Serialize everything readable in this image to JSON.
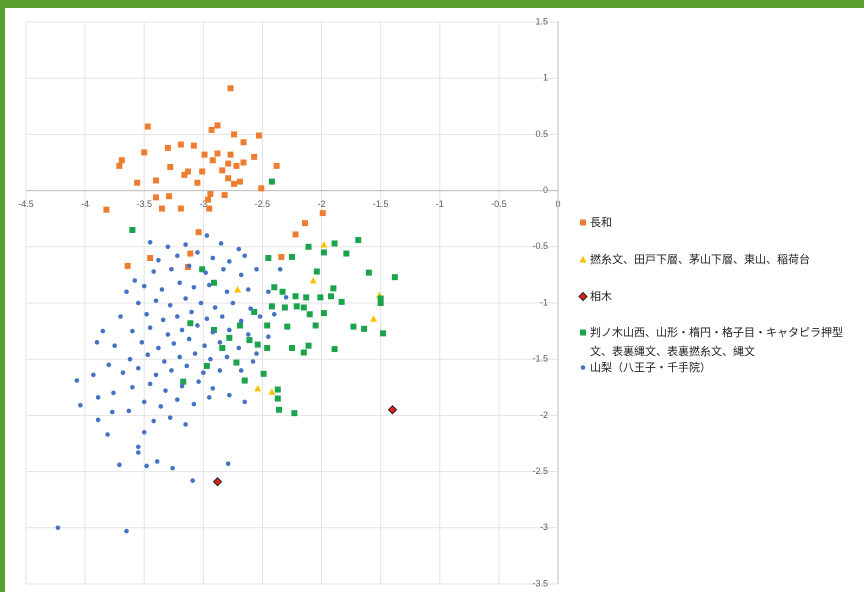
{
  "chart_data": {
    "type": "scatter",
    "xlim": [
      -4.5,
      0
    ],
    "ylim": [
      -3.5,
      1.5
    ],
    "xticks": [
      -4.5,
      -4,
      -3.5,
      -3,
      -2.5,
      -2,
      -1.5,
      -1,
      -0.5,
      0
    ],
    "yticks": [
      1.5,
      1,
      0.5,
      0,
      -0.5,
      -1,
      -1.5,
      -2,
      -2.5,
      -3,
      -3.5
    ],
    "grid": true,
    "legend": "right",
    "series": [
      {
        "name": "長和",
        "color": "#ED7D31",
        "marker": "square",
        "x": [
          -2.77,
          -3.47,
          -2.88,
          -2.93,
          -2.53,
          -2.74,
          -2.66,
          -3.3,
          -3.19,
          -3.08,
          -3.5,
          -2.99,
          -2.88,
          -2.77,
          -2.57,
          -3.69,
          -3.71,
          -3.28,
          -2.92,
          -2.79,
          -2.66,
          -2.72,
          -2.38,
          -3.13,
          -3.16,
          -3.01,
          -2.84,
          -3.4,
          -3.56,
          -3.05,
          -2.79,
          -2.69,
          -2.74,
          -2.51,
          -3.4,
          -3.29,
          -2.94,
          -2.82,
          -2.96,
          -3.82,
          -3.35,
          -3.19,
          -2.95,
          -1.99,
          -2.14,
          -2.22,
          -3.04,
          -3.11,
          -2.34,
          -3.45,
          -3.64,
          -3.13
        ],
        "values": [
          0.91,
          0.57,
          0.58,
          0.54,
          0.49,
          0.5,
          0.43,
          0.38,
          0.41,
          0.4,
          0.34,
          0.32,
          0.33,
          0.32,
          0.3,
          0.27,
          0.22,
          0.21,
          0.27,
          0.24,
          0.25,
          0.22,
          0.22,
          0.17,
          0.14,
          0.17,
          0.18,
          0.09,
          0.07,
          0.07,
          0.11,
          0.08,
          0.06,
          0.02,
          -0.06,
          -0.05,
          -0.03,
          -0.04,
          -0.08,
          -0.17,
          -0.16,
          -0.16,
          -0.16,
          -0.2,
          -0.29,
          -0.39,
          -0.37,
          -0.56,
          -0.59,
          -0.6,
          -0.67,
          -0.68
        ]
      },
      {
        "name": "撚糸文、田戸下層、茅山下層、東山、稲荷台",
        "color": "#FFC000",
        "marker": "triangle",
        "x": [
          -1.98,
          -2.07,
          -2.71,
          -1.51,
          -1.56,
          -2.54,
          -2.42
        ],
        "values": [
          -0.48,
          -0.8,
          -0.88,
          -0.93,
          -1.14,
          -1.76,
          -1.79
        ]
      },
      {
        "name": "相木",
        "color": "#E0201B",
        "marker": "diamond",
        "x": [
          -1.4,
          -2.88
        ],
        "values": [
          -1.95,
          -2.59
        ]
      },
      {
        "name": "判ノ木山西、山形・楕円・格子目・キャタピラ押型文、表裏縄文、表裏撚糸文、縄文",
        "color": "#1BA44B",
        "marker": "square",
        "x": [
          -3.6,
          -2.42,
          -1.69,
          -1.89,
          -2.11,
          -1.79,
          -1.98,
          -2.25,
          -2.45,
          -1.6,
          -2.04,
          -1.38,
          -2.4,
          -1.9,
          -2.33,
          -2.22,
          -2.13,
          -2.01,
          -1.92,
          -1.5,
          -1.5,
          -1.83,
          -2.42,
          -2.31,
          -2.21,
          -2.15,
          -2.1,
          -1.98,
          -2.57,
          -2.05,
          -1.73,
          -1.64,
          -1.48,
          -2.29,
          -2.46,
          -2.69,
          -2.78,
          -2.61,
          -2.54,
          -2.84,
          -2.25,
          -2.11,
          -2.15,
          -1.89,
          -2.46,
          -2.72,
          -2.97,
          -2.49,
          -2.65,
          -2.37,
          -2.37,
          -2.36,
          -2.23,
          -3.01,
          -2.91,
          -3.11,
          -3.17,
          -2.91
        ],
        "values": [
          -0.35,
          0.08,
          -0.44,
          -0.47,
          -0.5,
          -0.56,
          -0.55,
          -0.59,
          -0.6,
          -0.73,
          -0.72,
          -0.77,
          -0.86,
          -0.87,
          -0.9,
          -0.94,
          -0.95,
          -0.95,
          -0.94,
          -0.96,
          -1.0,
          -0.99,
          -1.03,
          -1.04,
          -1.03,
          -1.04,
          -1.1,
          -1.09,
          -1.08,
          -1.2,
          -1.21,
          -1.23,
          -1.27,
          -1.21,
          -1.2,
          -1.2,
          -1.31,
          -1.33,
          -1.37,
          -1.4,
          -1.4,
          -1.38,
          -1.44,
          -1.41,
          -1.4,
          -1.53,
          -1.56,
          -1.63,
          -1.69,
          -1.77,
          -1.85,
          -1.95,
          -1.98,
          -0.7,
          -0.82,
          -1.18,
          -1.7,
          -1.24
        ]
      },
      {
        "name": "山梨（八王子・千手院）",
        "color": "#4472C4",
        "marker": "circle",
        "x": [
          -4.23,
          -3.65,
          -4.07,
          -4.04,
          -3.93,
          -3.89,
          -3.89,
          -3.71,
          -2.79,
          -3.09,
          -3.39,
          -3.48,
          -3.26,
          -3.55,
          -3.55,
          -3.81,
          -3.77,
          -3.63,
          -3.76,
          -3.45,
          -3.3,
          -3.15,
          -2.97,
          -2.85,
          -2.7,
          -3.38,
          -3.22,
          -3.05,
          -2.92,
          -2.78,
          -2.65,
          -3.58,
          -3.42,
          -3.27,
          -3.12,
          -2.98,
          -2.83,
          -2.68,
          -2.55,
          -3.65,
          -3.5,
          -3.35,
          -3.2,
          -3.08,
          -2.95,
          -2.8,
          -2.62,
          -3.55,
          -3.4,
          -3.28,
          -3.15,
          -3.02,
          -2.9,
          -2.75,
          -2.6,
          -3.7,
          -3.48,
          -3.34,
          -3.22,
          -3.1,
          -2.97,
          -2.84,
          -2.68,
          -2.52,
          -3.6,
          -3.45,
          -3.3,
          -3.18,
          -3.05,
          -2.92,
          -2.78,
          -2.62,
          -3.75,
          -3.52,
          -3.38,
          -3.25,
          -3.12,
          -2.99,
          -2.86,
          -2.7,
          -3.62,
          -3.47,
          -3.33,
          -3.2,
          -3.07,
          -2.94,
          -2.8,
          -2.58,
          -3.68,
          -3.55,
          -3.4,
          -3.27,
          -3.14,
          -3.0,
          -2.86,
          -3.6,
          -3.45,
          -3.32,
          -3.18,
          -3.04,
          -2.92,
          -2.65,
          -3.5,
          -3.36,
          -3.22,
          -3.08,
          -2.95,
          -3.42,
          -3.28,
          -3.15,
          -3.5,
          -3.85,
          -3.8,
          -3.9,
          -2.45,
          -2.35,
          -2.3,
          -2.4,
          -2.45,
          -2.55,
          -2.68,
          -2.78
        ],
        "values": [
          -3.0,
          -3.03,
          -1.69,
          -1.91,
          -1.64,
          -1.84,
          -2.04,
          -2.44,
          -2.43,
          -2.58,
          -2.41,
          -2.45,
          -2.47,
          -2.33,
          -2.28,
          -2.17,
          -1.97,
          -1.96,
          -1.8,
          -0.46,
          -0.5,
          -0.48,
          -0.4,
          -0.47,
          -0.52,
          -0.62,
          -0.58,
          -0.55,
          -0.6,
          -0.63,
          -0.58,
          -0.8,
          -0.72,
          -0.7,
          -0.67,
          -0.73,
          -0.7,
          -0.75,
          -0.7,
          -0.9,
          -0.85,
          -0.88,
          -0.82,
          -0.86,
          -0.84,
          -0.9,
          -0.88,
          -1.0,
          -0.98,
          -1.02,
          -0.96,
          -1.0,
          -1.04,
          -1.0,
          -1.05,
          -1.12,
          -1.1,
          -1.15,
          -1.12,
          -1.08,
          -1.14,
          -1.12,
          -1.16,
          -1.12,
          -1.25,
          -1.22,
          -1.28,
          -1.24,
          -1.2,
          -1.26,
          -1.24,
          -1.28,
          -1.38,
          -1.35,
          -1.4,
          -1.36,
          -1.32,
          -1.38,
          -1.35,
          -1.4,
          -1.5,
          -1.46,
          -1.52,
          -1.48,
          -1.45,
          -1.5,
          -1.48,
          -1.52,
          -1.62,
          -1.58,
          -1.64,
          -1.6,
          -1.56,
          -1.62,
          -1.6,
          -1.75,
          -1.72,
          -1.78,
          -1.74,
          -1.7,
          -1.76,
          -1.88,
          -1.88,
          -1.92,
          -1.86,
          -1.9,
          -1.84,
          -2.05,
          -2.02,
          -2.08,
          -2.15,
          -1.25,
          -1.55,
          -1.35,
          -0.9,
          -0.7,
          -0.95,
          -1.1,
          -1.3,
          -1.45,
          -1.6,
          -1.82
        ]
      }
    ]
  }
}
